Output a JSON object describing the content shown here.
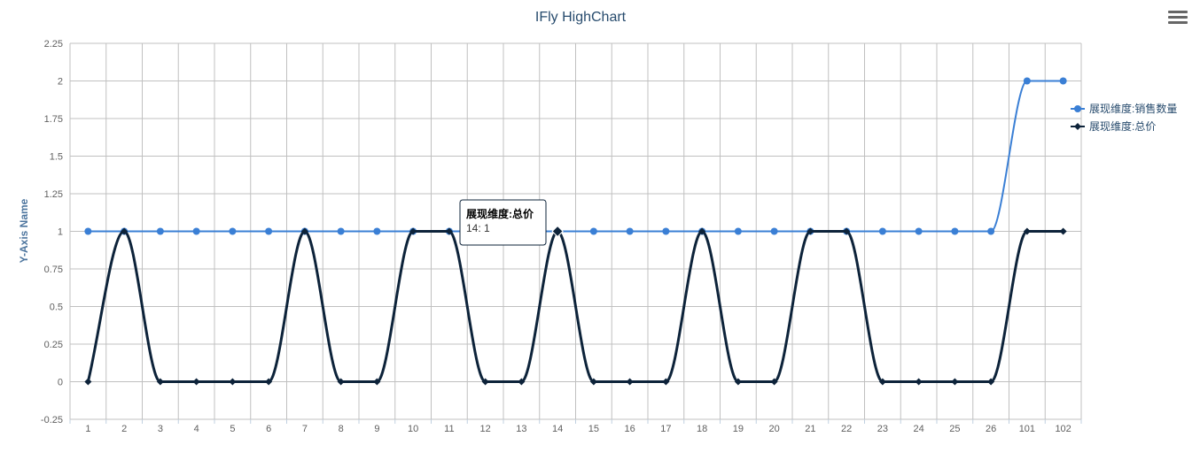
{
  "menu": {
    "icon": "hamburger-menu-icon"
  },
  "chart_data": {
    "type": "line",
    "title": "IFly HighChart",
    "xlabel": "",
    "ylabel": "Y-Axis Name",
    "categories": [
      "1",
      "2",
      "3",
      "4",
      "5",
      "6",
      "7",
      "8",
      "9",
      "10",
      "11",
      "12",
      "13",
      "14",
      "15",
      "16",
      "17",
      "18",
      "19",
      "20",
      "21",
      "22",
      "23",
      "24",
      "25",
      "26",
      "101",
      "102"
    ],
    "ylim": [
      -0.25,
      2.25
    ],
    "yticks": [
      "-0.25",
      "0",
      "0.25",
      "0.5",
      "0.75",
      "1",
      "1.25",
      "1.5",
      "1.75",
      "2",
      "2.25"
    ],
    "grid": true,
    "legend_position": "right",
    "series": [
      {
        "name": "展现维度:销售数量",
        "color": "#3a7fd5",
        "marker": "circle",
        "values": [
          1,
          1,
          1,
          1,
          1,
          1,
          1,
          1,
          1,
          1,
          1,
          1,
          1,
          1,
          1,
          1,
          1,
          1,
          1,
          1,
          1,
          1,
          1,
          1,
          1,
          1,
          2,
          2
        ]
      },
      {
        "name": "展现维度:总价",
        "color": "#0d233a",
        "marker": "diamond",
        "values": [
          0,
          1,
          0,
          0,
          0,
          0,
          1,
          0,
          0,
          1,
          1,
          0,
          0,
          1,
          0,
          0,
          0,
          1,
          0,
          0,
          1,
          1,
          0,
          0,
          0,
          0,
          1,
          1
        ]
      }
    ],
    "tooltip": {
      "title": "展现维度:总价",
      "text": "14: 1",
      "category": "14",
      "series_index": 1
    }
  }
}
